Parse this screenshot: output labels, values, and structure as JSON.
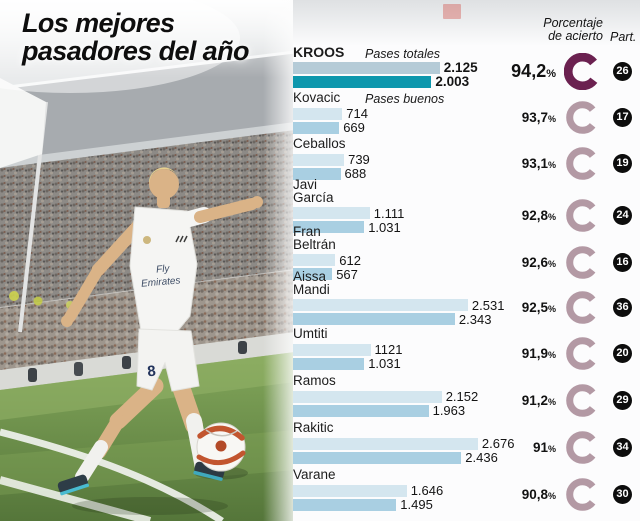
{
  "title": {
    "line1": "Los mejores",
    "line2": "pasadores del año"
  },
  "columns": {
    "pct_line1": "Porcentaje",
    "pct_line2": "de acierto",
    "part": "Part."
  },
  "legend": {
    "total": "Pases totales",
    "good": "Pases buenos"
  },
  "labels": {
    "pct_unit": "%"
  },
  "colors": {
    "bar_total": "#d4e6ef",
    "bar_good": "#a9cfe2",
    "bar_total_hl": "#b5cbd7",
    "bar_good_hl": "#0d97ad",
    "donut": "#b399a4",
    "donut_hl": "#6b2150",
    "badge_bg": "#0d0d0d",
    "accent_red": "#cf3a30"
  },
  "photo": {
    "jersey_line1": "Fly",
    "jersey_line2": "Emirates",
    "shorts_number": "8"
  },
  "chart_data": {
    "type": "bar",
    "orientation": "horizontal",
    "series": [
      "Pases totales",
      "Pases buenos"
    ],
    "x_max_hint": 2676,
    "legend_position": "inline-top",
    "players": [
      {
        "name_l1": "KROOS",
        "name_l2": "",
        "total_label": "2.125",
        "total": 2125,
        "good_label": "2.003",
        "good": 2003,
        "pct": "94,2",
        "part": "26",
        "highlight": true
      },
      {
        "name_l1": "Kovacic",
        "name_l2": "",
        "total_label": "714",
        "total": 714,
        "good_label": "669",
        "good": 669,
        "pct": "93,7",
        "part": "17",
        "highlight": false
      },
      {
        "name_l1": "Ceballos",
        "name_l2": "",
        "total_label": "739",
        "total": 739,
        "good_label": "688",
        "good": 688,
        "pct": "93,1",
        "part": "19",
        "highlight": false
      },
      {
        "name_l1": "Javi",
        "name_l2": "García",
        "total_label": "1.111",
        "total": 1111,
        "good_label": "1.031",
        "good": 1031,
        "pct": "92,8",
        "part": "24",
        "highlight": false
      },
      {
        "name_l1": "Fran",
        "name_l2": "Beltrán",
        "total_label": "612",
        "total": 612,
        "good_label": "567",
        "good": 567,
        "pct": "92,6",
        "part": "16",
        "highlight": false
      },
      {
        "name_l1": "Aissa",
        "name_l2": "Mandi",
        "total_label": "2.531",
        "total": 2531,
        "good_label": "2.343",
        "good": 2343,
        "pct": "92,5",
        "part": "36",
        "highlight": false
      },
      {
        "name_l1": "Umtiti",
        "name_l2": "",
        "total_label": "1121",
        "total": 1121,
        "good_label": "1.031",
        "good": 1031,
        "pct": "91,9",
        "part": "20",
        "highlight": false
      },
      {
        "name_l1": "Ramos",
        "name_l2": "",
        "total_label": "2.152",
        "total": 2152,
        "good_label": "1.963",
        "good": 1963,
        "pct": "91,2",
        "part": "29",
        "highlight": false
      },
      {
        "name_l1": "Rakitic",
        "name_l2": "",
        "total_label": "2.676",
        "total": 2676,
        "good_label": "2.436",
        "good": 2436,
        "pct": "91",
        "part": "34",
        "highlight": false
      },
      {
        "name_l1": "Varane",
        "name_l2": "",
        "total_label": "1.646",
        "total": 1646,
        "good_label": "1.495",
        "good": 1495,
        "pct": "90,8",
        "part": "30",
        "highlight": false
      }
    ]
  }
}
